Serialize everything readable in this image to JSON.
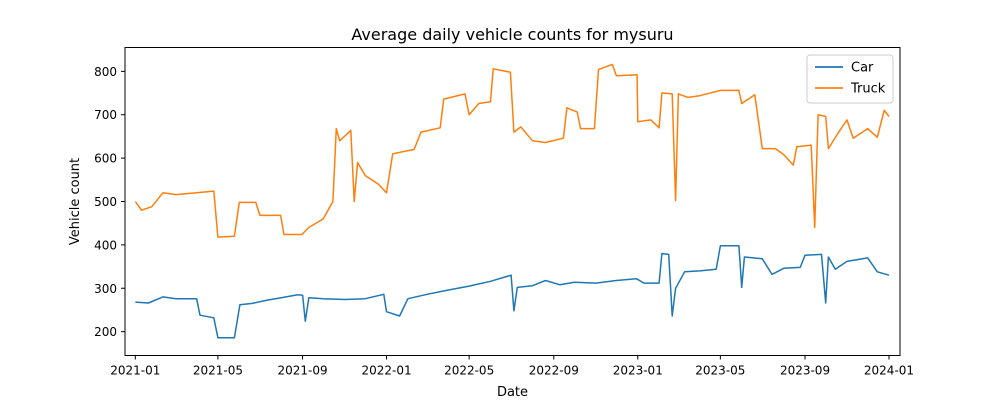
{
  "chart_data": {
    "type": "line",
    "title": "Average daily vehicle counts for mysuru",
    "xlabel": "Date",
    "ylabel": "Vehicle count",
    "x_range": [
      "2020-12-17",
      "2024-01-17"
    ],
    "ylim": [
      145,
      855
    ],
    "x_ticks": [
      {
        "date": "2021-01-01",
        "label": "2021-01"
      },
      {
        "date": "2021-05-01",
        "label": "2021-05"
      },
      {
        "date": "2021-09-01",
        "label": "2021-09"
      },
      {
        "date": "2022-01-01",
        "label": "2022-01"
      },
      {
        "date": "2022-05-01",
        "label": "2022-05"
      },
      {
        "date": "2022-09-01",
        "label": "2022-09"
      },
      {
        "date": "2023-01-01",
        "label": "2023-01"
      },
      {
        "date": "2023-05-01",
        "label": "2023-05"
      },
      {
        "date": "2023-09-01",
        "label": "2023-09"
      },
      {
        "date": "2024-01-01",
        "label": "2024-01"
      }
    ],
    "y_ticks": [
      200,
      300,
      400,
      500,
      600,
      700,
      800
    ],
    "grid": false,
    "legend": "top-right",
    "series": [
      {
        "name": "Car",
        "color": "#1f77b4",
        "points": [
          [
            "2021-01-01",
            268
          ],
          [
            "2021-01-20",
            266
          ],
          [
            "2021-02-10",
            280
          ],
          [
            "2021-03-01",
            276
          ],
          [
            "2021-03-31",
            276
          ],
          [
            "2021-04-05",
            238
          ],
          [
            "2021-04-25",
            232
          ],
          [
            "2021-05-01",
            186
          ],
          [
            "2021-05-25",
            186
          ],
          [
            "2021-06-02",
            262
          ],
          [
            "2021-06-20",
            265
          ],
          [
            "2021-07-10",
            272
          ],
          [
            "2021-08-01",
            278
          ],
          [
            "2021-08-25",
            285
          ],
          [
            "2021-09-01",
            284
          ],
          [
            "2021-09-05",
            224
          ],
          [
            "2021-09-10",
            278
          ],
          [
            "2021-10-01",
            276
          ],
          [
            "2021-11-01",
            274
          ],
          [
            "2021-12-01",
            276
          ],
          [
            "2021-12-28",
            286
          ],
          [
            "2022-01-01",
            246
          ],
          [
            "2022-01-20",
            236
          ],
          [
            "2022-02-01",
            276
          ],
          [
            "2022-03-01",
            286
          ],
          [
            "2022-04-01",
            296
          ],
          [
            "2022-05-01",
            305
          ],
          [
            "2022-06-01",
            316
          ],
          [
            "2022-07-01",
            330
          ],
          [
            "2022-07-05",
            248
          ],
          [
            "2022-07-10",
            302
          ],
          [
            "2022-08-01",
            306
          ],
          [
            "2022-08-20",
            318
          ],
          [
            "2022-09-10",
            308
          ],
          [
            "2022-10-01",
            314
          ],
          [
            "2022-11-01",
            312
          ],
          [
            "2022-12-01",
            318
          ],
          [
            "2022-12-30",
            322
          ],
          [
            "2023-01-10",
            312
          ],
          [
            "2023-02-01",
            312
          ],
          [
            "2023-02-05",
            380
          ],
          [
            "2023-02-15",
            378
          ],
          [
            "2023-02-20",
            236
          ],
          [
            "2023-02-25",
            300
          ],
          [
            "2023-03-10",
            338
          ],
          [
            "2023-04-01",
            340
          ],
          [
            "2023-04-25",
            344
          ],
          [
            "2023-05-01",
            398
          ],
          [
            "2023-05-28",
            398
          ],
          [
            "2023-06-01",
            302
          ],
          [
            "2023-06-05",
            372
          ],
          [
            "2023-07-01",
            368
          ],
          [
            "2023-07-15",
            332
          ],
          [
            "2023-08-01",
            346
          ],
          [
            "2023-08-25",
            348
          ],
          [
            "2023-09-01",
            376
          ],
          [
            "2023-09-25",
            378
          ],
          [
            "2023-10-01",
            266
          ],
          [
            "2023-10-05",
            372
          ],
          [
            "2023-10-15",
            344
          ],
          [
            "2023-11-01",
            362
          ],
          [
            "2023-12-01",
            370
          ],
          [
            "2023-12-15",
            338
          ],
          [
            "2024-01-01",
            330
          ]
        ]
      },
      {
        "name": "Truck",
        "color": "#ff7f0e",
        "points": [
          [
            "2021-01-01",
            500
          ],
          [
            "2021-01-10",
            480
          ],
          [
            "2021-01-25",
            488
          ],
          [
            "2021-02-10",
            520
          ],
          [
            "2021-03-01",
            516
          ],
          [
            "2021-03-31",
            520
          ],
          [
            "2021-04-25",
            524
          ],
          [
            "2021-05-01",
            418
          ],
          [
            "2021-05-25",
            420
          ],
          [
            "2021-06-01",
            498
          ],
          [
            "2021-06-25",
            498
          ],
          [
            "2021-07-01",
            468
          ],
          [
            "2021-07-31",
            468
          ],
          [
            "2021-08-05",
            424
          ],
          [
            "2021-08-31",
            424
          ],
          [
            "2021-09-10",
            440
          ],
          [
            "2021-10-01",
            460
          ],
          [
            "2021-10-15",
            500
          ],
          [
            "2021-10-20",
            668
          ],
          [
            "2021-10-25",
            640
          ],
          [
            "2021-11-10",
            664
          ],
          [
            "2021-11-15",
            500
          ],
          [
            "2021-11-20",
            590
          ],
          [
            "2021-12-01",
            560
          ],
          [
            "2021-12-20",
            540
          ],
          [
            "2022-01-01",
            520
          ],
          [
            "2022-01-10",
            610
          ],
          [
            "2022-02-10",
            620
          ],
          [
            "2022-02-20",
            660
          ],
          [
            "2022-03-20",
            670
          ],
          [
            "2022-03-25",
            736
          ],
          [
            "2022-04-25",
            748
          ],
          [
            "2022-05-01",
            700
          ],
          [
            "2022-05-15",
            726
          ],
          [
            "2022-06-01",
            730
          ],
          [
            "2022-06-05",
            806
          ],
          [
            "2022-06-30",
            798
          ],
          [
            "2022-07-05",
            660
          ],
          [
            "2022-07-15",
            672
          ],
          [
            "2022-08-01",
            640
          ],
          [
            "2022-08-20",
            636
          ],
          [
            "2022-09-15",
            646
          ],
          [
            "2022-09-20",
            716
          ],
          [
            "2022-10-05",
            706
          ],
          [
            "2022-10-10",
            668
          ],
          [
            "2022-10-30",
            668
          ],
          [
            "2022-11-05",
            804
          ],
          [
            "2022-11-25",
            816
          ],
          [
            "2022-12-01",
            790
          ],
          [
            "2022-12-31",
            792
          ],
          [
            "2023-01-01",
            684
          ],
          [
            "2023-01-20",
            688
          ],
          [
            "2023-02-01",
            670
          ],
          [
            "2023-02-05",
            750
          ],
          [
            "2023-02-20",
            748
          ],
          [
            "2023-02-25",
            502
          ],
          [
            "2023-03-01",
            748
          ],
          [
            "2023-03-15",
            740
          ],
          [
            "2023-04-01",
            744
          ],
          [
            "2023-05-01",
            756
          ],
          [
            "2023-05-28",
            756
          ],
          [
            "2023-06-01",
            726
          ],
          [
            "2023-06-20",
            746
          ],
          [
            "2023-07-01",
            622
          ],
          [
            "2023-07-20",
            622
          ],
          [
            "2023-08-01",
            608
          ],
          [
            "2023-08-15",
            584
          ],
          [
            "2023-08-20",
            626
          ],
          [
            "2023-09-10",
            630
          ],
          [
            "2023-09-15",
            440
          ],
          [
            "2023-09-20",
            700
          ],
          [
            "2023-10-01",
            696
          ],
          [
            "2023-10-05",
            622
          ],
          [
            "2023-10-20",
            660
          ],
          [
            "2023-11-01",
            688
          ],
          [
            "2023-11-10",
            646
          ],
          [
            "2023-12-01",
            668
          ],
          [
            "2023-12-15",
            648
          ],
          [
            "2023-12-25",
            710
          ],
          [
            "2024-01-01",
            696
          ]
        ]
      }
    ]
  }
}
